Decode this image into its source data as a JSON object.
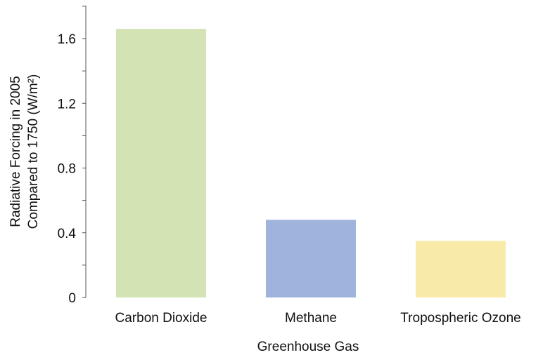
{
  "chart_data": {
    "type": "bar",
    "xlabel": "Greenhouse Gas",
    "ylabel_lines": [
      "Radiative Forcing in 2005",
      "Compared to 1750 (W/m²)"
    ],
    "categories": [
      "Carbon Dioxide",
      "Methane",
      "Tropospheric Ozone"
    ],
    "values": [
      1.66,
      0.48,
      0.35
    ],
    "colors": [
      "#d3e3b3",
      "#9fb3dd",
      "#f8ebaa"
    ],
    "ylim": [
      0,
      1.8
    ],
    "yticks": [
      0,
      0.4,
      0.8,
      1.2,
      1.6
    ],
    "ytick_labels": [
      "0",
      "0.4",
      "0.8",
      "1.2",
      "1.6"
    ],
    "grid": false,
    "legend": "none"
  }
}
